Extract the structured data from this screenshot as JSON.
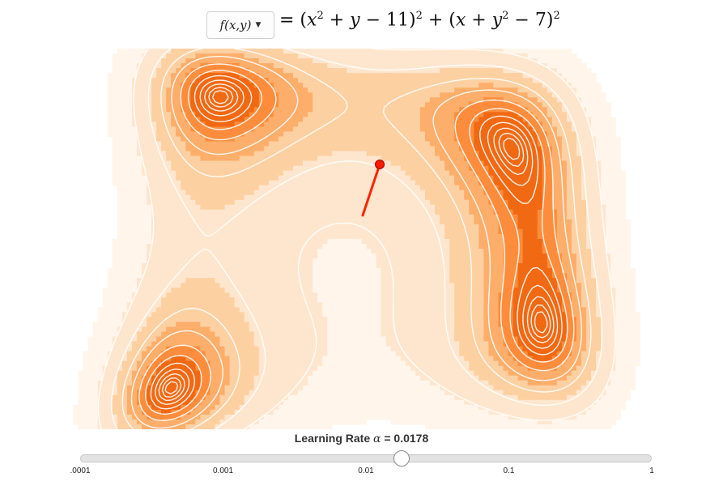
{
  "header": {
    "function_selector_label": "f(x,y)",
    "formula_display": "= (x² + y − 11)² + (x + y² − 7)²",
    "formula_parts": [
      "= (",
      "x",
      "2",
      " + ",
      "y",
      " − 11)",
      "2",
      " + (",
      "x",
      " + ",
      "y",
      "2",
      " − 7)",
      "2"
    ]
  },
  "plot": {
    "function": "himmelblau",
    "color_scale": [
      "#fff5eb",
      "#fee6ce",
      "#fdd0a2",
      "#fdae6b",
      "#fd8d3c",
      "#f16913"
    ],
    "contour_line_color": "#ffffff",
    "path_color": "#ff2200",
    "minima_count": 4,
    "current_point_label": "current-point"
  },
  "learning_rate": {
    "label_prefix": "Learning Rate",
    "symbol": "α",
    "value_text": "= 0.0178",
    "value": 0.0178,
    "min": 0.0001,
    "max": 1,
    "scale": "log",
    "ticks": [
      ".0001",
      "0.001",
      "0.01",
      "0.1",
      "1"
    ]
  }
}
